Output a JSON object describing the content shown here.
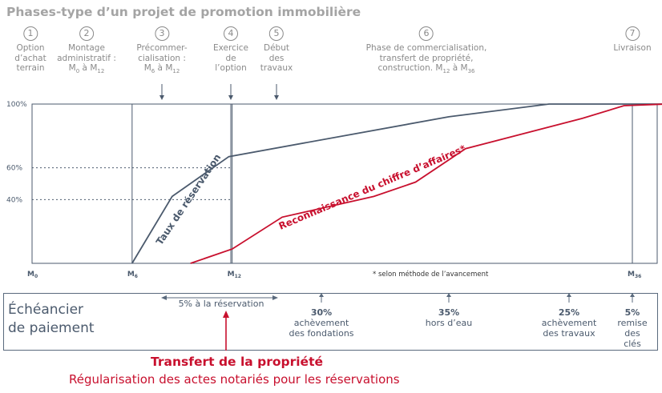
{
  "title": "Phases-type d’un projet de promotion immobilière",
  "phases": [
    {
      "num": "1",
      "lines": [
        "Option",
        "d’achat",
        "terrain"
      ]
    },
    {
      "num": "2",
      "lines": [
        "Montage",
        "administratif :",
        "M0 à M12"
      ]
    },
    {
      "num": "3",
      "lines": [
        "Précommer-",
        "cialisation :",
        "M6 à M12"
      ]
    },
    {
      "num": "4",
      "lines": [
        "Exercice",
        "de",
        "l’option"
      ]
    },
    {
      "num": "5",
      "lines": [
        "Début",
        "des",
        "travaux"
      ]
    },
    {
      "num": "6",
      "lines": [
        "Phase de commercialisation,",
        "transfert de propriété,",
        "construction. M12 à M36"
      ]
    },
    {
      "num": "7",
      "lines": [
        "Livraison"
      ]
    }
  ],
  "chart_data": {
    "type": "line",
    "x_ticks": [
      "M0",
      "M6",
      "M12",
      "M36"
    ],
    "y_ticks": [
      "100%",
      "60%",
      "40%"
    ],
    "ylim": [
      0,
      100
    ],
    "series": [
      {
        "name": "Taux de réservation",
        "color": "#4b5a6d",
        "points": [
          [
            6,
            0
          ],
          [
            8.4,
            42
          ],
          [
            11.8,
            67
          ],
          [
            25,
            92
          ],
          [
            31,
            100
          ],
          [
            38,
            100
          ]
        ]
      },
      {
        "name": "Reconnaissance du chiffre d’affaires*",
        "color": "#c8102e",
        "points": [
          [
            9.5,
            0
          ],
          [
            12,
            9
          ],
          [
            15,
            29
          ],
          [
            20.5,
            42
          ],
          [
            23,
            51
          ],
          [
            26,
            72
          ],
          [
            33,
            91
          ],
          [
            35.5,
            99
          ],
          [
            38,
            100
          ]
        ]
      }
    ],
    "note": "* selon méthode de l’avancement"
  },
  "schedule": {
    "title": "Échéancier\nde paiement",
    "reservation": "5% à la réservation",
    "payments": [
      {
        "pct": "30%",
        "label": "achèvement\ndes fondations"
      },
      {
        "pct": "35%",
        "label": "hors d’eau"
      },
      {
        "pct": "25%",
        "label": "achèvement\ndes travaux"
      },
      {
        "pct": "5%",
        "label": "remise\ndes clés"
      }
    ]
  },
  "transfer": {
    "title": "Transfert de la propriété",
    "subtitle": "Régularisation des actes notariés pour les réservations"
  },
  "colors": {
    "navy": "#4b5a6d",
    "red": "#c8102e",
    "grey": "#8a8a8a"
  }
}
